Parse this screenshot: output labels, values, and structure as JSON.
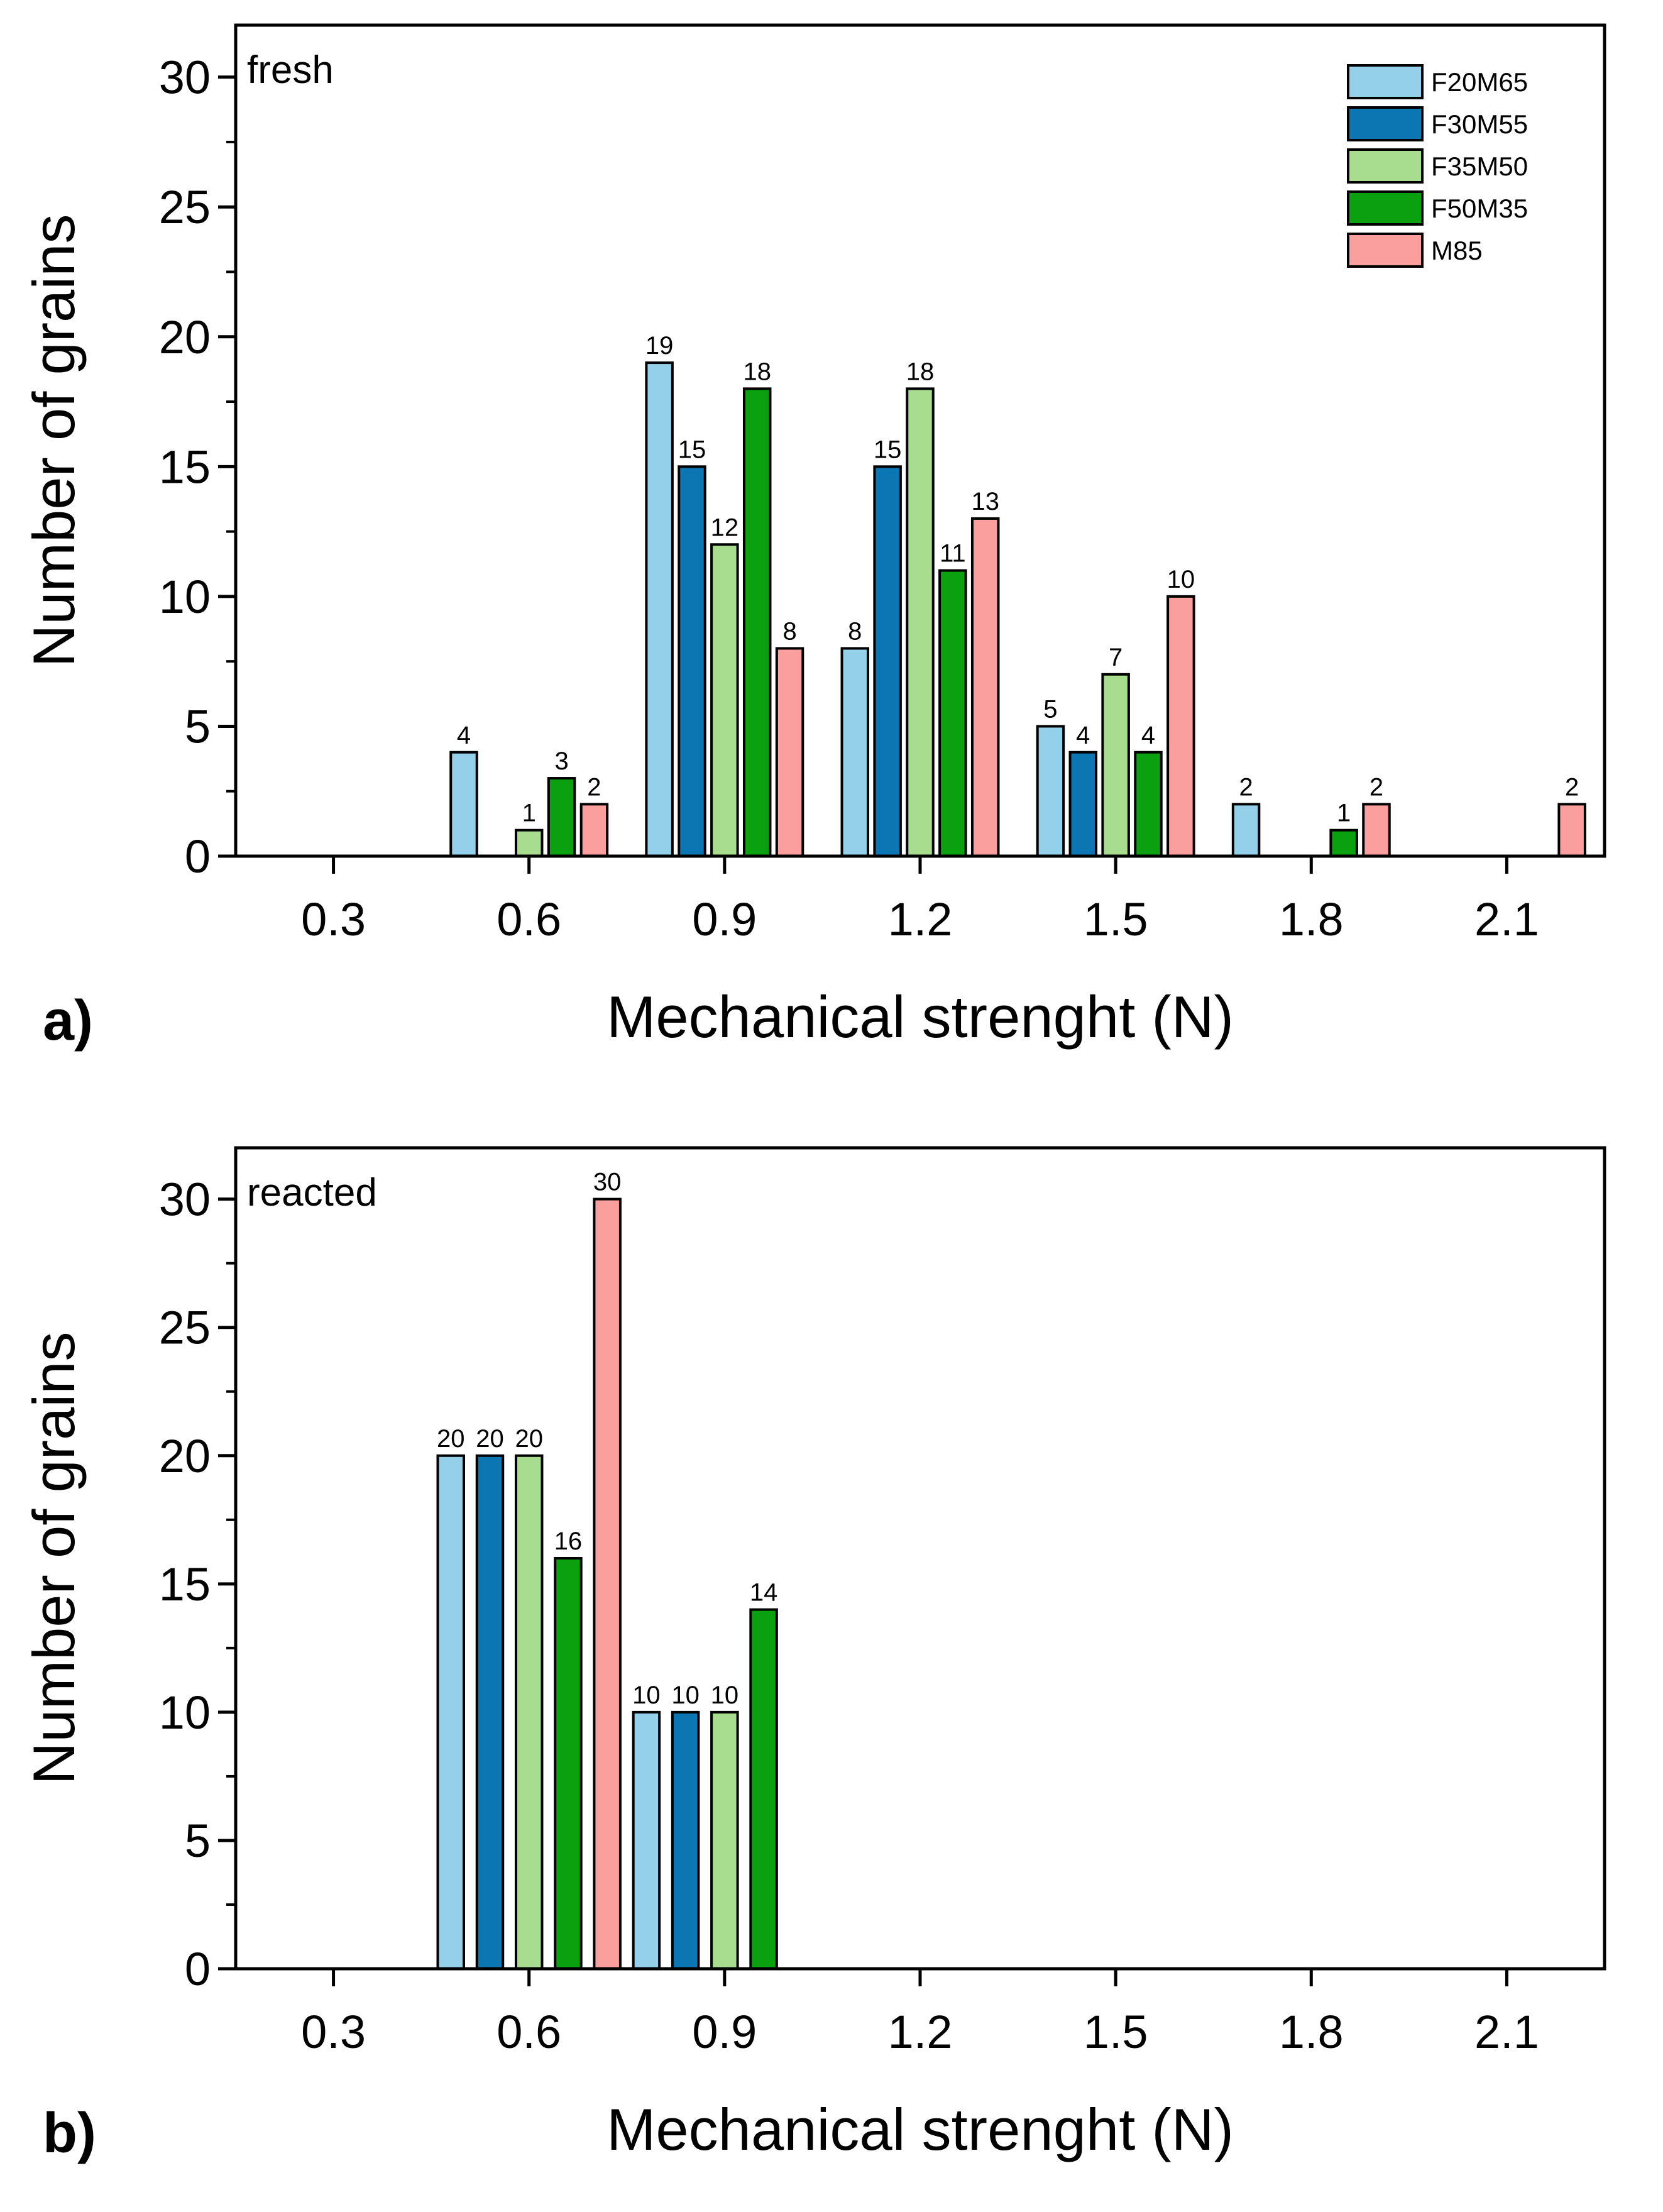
{
  "chart_data": [
    {
      "type": "bar",
      "panel_letter": "a)",
      "panel_label": "fresh",
      "xlabel": "Mechanical strenght (N)",
      "ylabel": "Number of grains",
      "xlim": [
        0.15,
        2.25
      ],
      "ylim": [
        0,
        32
      ],
      "xticks": [
        "0.3",
        "0.6",
        "0.9",
        "1.2",
        "1.5",
        "1.8",
        "2.1"
      ],
      "yticks": [
        "0",
        "5",
        "10",
        "15",
        "20",
        "25",
        "30"
      ],
      "grid": false,
      "legend_position": "top-right",
      "series": [
        {
          "name": "F20M65",
          "color": "#94d0ea",
          "points": [
            [
              0.5,
              4
            ],
            [
              0.8,
              19
            ],
            [
              1.1,
              8
            ],
            [
              1.4,
              5
            ],
            [
              1.7,
              2
            ]
          ]
        },
        {
          "name": "F30M55",
          "color": "#0b76b2",
          "points": [
            [
              0.85,
              15
            ],
            [
              1.15,
              15
            ],
            [
              1.45,
              4
            ]
          ]
        },
        {
          "name": "F35M50",
          "color": "#a8dd90",
          "points": [
            [
              0.6,
              1
            ],
            [
              0.9,
              12
            ],
            [
              1.2,
              18
            ],
            [
              1.5,
              7
            ]
          ]
        },
        {
          "name": "F50M35",
          "color": "#0aa010",
          "points": [
            [
              0.65,
              3
            ],
            [
              0.95,
              18
            ],
            [
              1.25,
              11
            ],
            [
              1.55,
              4
            ],
            [
              1.85,
              1
            ]
          ]
        },
        {
          "name": "M85",
          "color": "#fa9e9e",
          "points": [
            [
              0.7,
              2
            ],
            [
              1.0,
              8
            ],
            [
              1.3,
              13
            ],
            [
              1.6,
              10
            ],
            [
              1.9,
              2
            ],
            [
              2.2,
              2
            ]
          ]
        }
      ]
    },
    {
      "type": "bar",
      "panel_letter": "b)",
      "panel_label": "reacted",
      "xlabel": "Mechanical strenght (N)",
      "ylabel": "Number of grains",
      "xlim": [
        0.15,
        2.25
      ],
      "ylim": [
        0,
        32
      ],
      "xticks": [
        "0.3",
        "0.6",
        "0.9",
        "1.2",
        "1.5",
        "1.8",
        "2.1"
      ],
      "yticks": [
        "0",
        "5",
        "10",
        "15",
        "20",
        "25",
        "30"
      ],
      "grid": false,
      "series": [
        {
          "name": "F20M65",
          "color": "#94d0ea",
          "points": [
            [
              0.48,
              20
            ],
            [
              0.78,
              10
            ]
          ]
        },
        {
          "name": "F30M55",
          "color": "#0b76b2",
          "points": [
            [
              0.54,
              20
            ],
            [
              0.84,
              10
            ]
          ]
        },
        {
          "name": "F35M50",
          "color": "#a8dd90",
          "points": [
            [
              0.6,
              20
            ],
            [
              0.9,
              10
            ]
          ]
        },
        {
          "name": "F50M35",
          "color": "#0aa010",
          "points": [
            [
              0.66,
              16
            ],
            [
              0.96,
              14
            ]
          ]
        },
        {
          "name": "M85",
          "color": "#fa9e9e",
          "points": [
            [
              0.72,
              30
            ]
          ]
        }
      ]
    }
  ]
}
